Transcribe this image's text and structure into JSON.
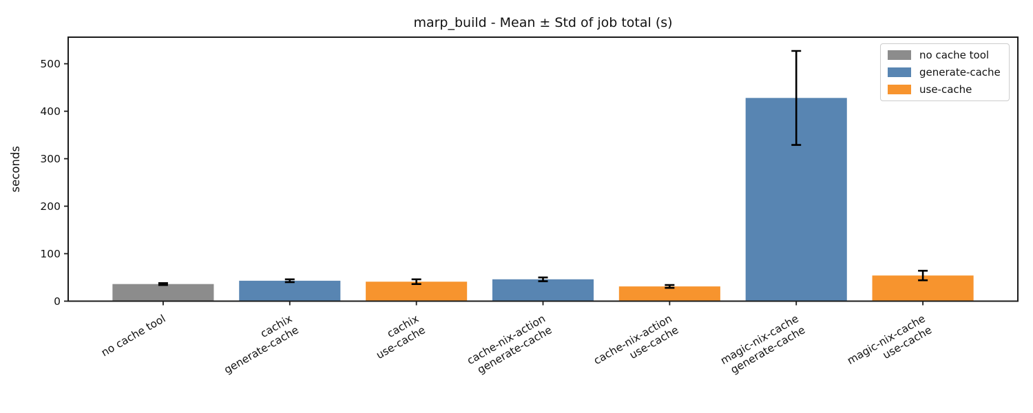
{
  "chart_data": {
    "type": "bar",
    "title": "marp_build - Mean ± Std of job total (s)",
    "ylabel": "seconds",
    "xlabel": "",
    "ylim": [
      0,
      556
    ],
    "yticks": [
      0,
      100,
      200,
      300,
      400,
      500
    ],
    "grid": false,
    "error_bars": "mean ± std, black caps",
    "colors": {
      "no cache tool": "#8C8C8C",
      "generate-cache": "#5885B2",
      "use-cache": "#F7942E",
      "axis": "#1a1a1a",
      "error": "#000000"
    },
    "bars": [
      {
        "category": "no cache tool",
        "label_lines": [
          "no cache tool"
        ],
        "group": "no cache tool",
        "value": 36,
        "std": 2
      },
      {
        "category": "cachix generate-cache",
        "label_lines": [
          "cachix",
          "generate-cache"
        ],
        "group": "generate-cache",
        "value": 43,
        "std": 3
      },
      {
        "category": "cachix use-cache",
        "label_lines": [
          "cachix",
          "use-cache"
        ],
        "group": "use-cache",
        "value": 41,
        "std": 5
      },
      {
        "category": "cache-nix-action generate-cache",
        "label_lines": [
          "cache-nix-action",
          "generate-cache"
        ],
        "group": "generate-cache",
        "value": 46,
        "std": 4
      },
      {
        "category": "cache-nix-action use-cache",
        "label_lines": [
          "cache-nix-action",
          "use-cache"
        ],
        "group": "use-cache",
        "value": 31,
        "std": 3
      },
      {
        "category": "magic-nix-cache generate-cache",
        "label_lines": [
          "magic-nix-cache",
          "generate-cache"
        ],
        "group": "generate-cache",
        "value": 428,
        "std": 99
      },
      {
        "category": "magic-nix-cache use-cache",
        "label_lines": [
          "magic-nix-cache",
          "use-cache"
        ],
        "group": "use-cache",
        "value": 54,
        "std": 10
      }
    ],
    "legend": {
      "position": "upper right",
      "entries": [
        {
          "label": "no cache tool",
          "color": "#8C8C8C"
        },
        {
          "label": "generate-cache",
          "color": "#5885B2"
        },
        {
          "label": "use-cache",
          "color": "#F7942E"
        }
      ]
    }
  }
}
